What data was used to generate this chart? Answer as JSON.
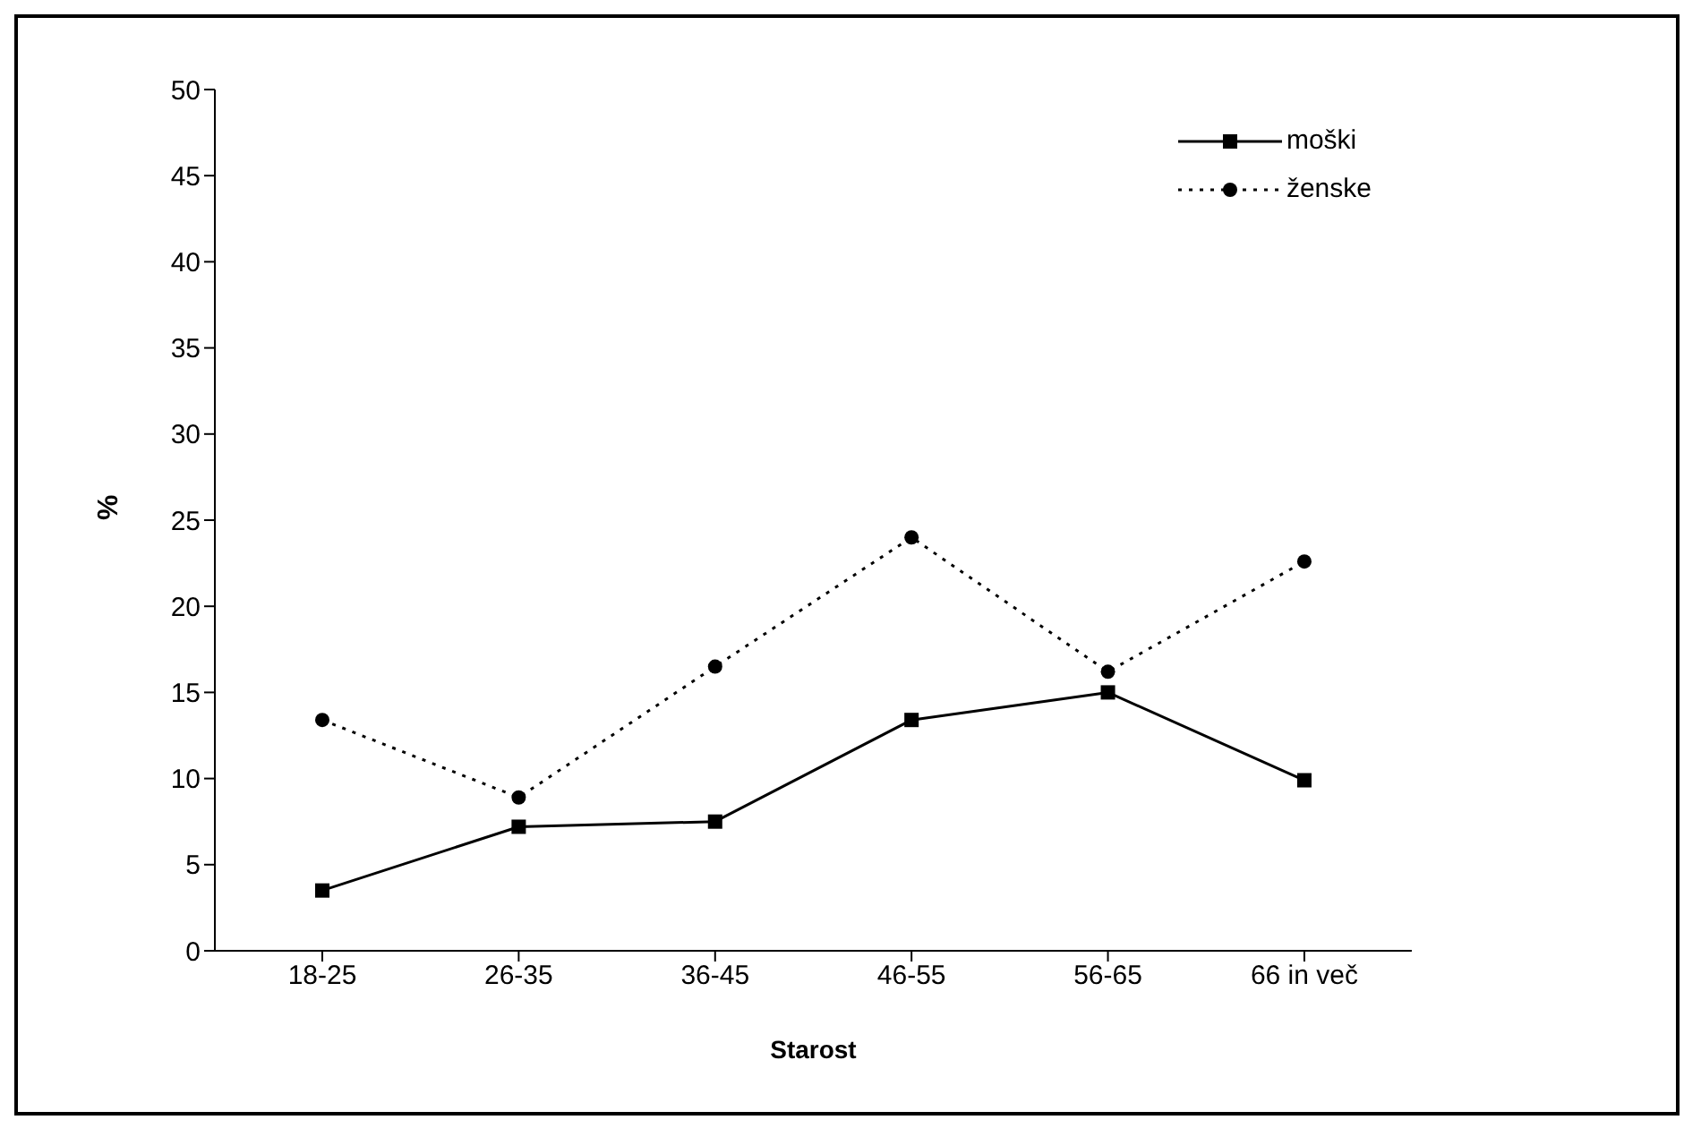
{
  "chart_data": {
    "type": "line",
    "xlabel": "Starost",
    "ylabel": "%",
    "categories": [
      "18-25",
      "26-35",
      "36-45",
      "46-55",
      "56-65",
      "66 in več"
    ],
    "series": [
      {
        "name": "moški",
        "color": "#000000",
        "marker": "square",
        "line_style": "solid",
        "values": [
          3.5,
          7.2,
          7.5,
          13.4,
          15,
          9.9
        ]
      },
      {
        "name": "ženske",
        "color": "#000000",
        "marker": "circle",
        "line_style": "dotted",
        "values": [
          13.4,
          8.9,
          16.5,
          24,
          16.2,
          22.6
        ]
      }
    ],
    "ylim": [
      0,
      50
    ],
    "yticks": [
      0,
      5,
      10,
      15,
      20,
      25,
      30,
      35,
      40,
      45,
      50
    ],
    "grid": false,
    "legend": "top right"
  }
}
